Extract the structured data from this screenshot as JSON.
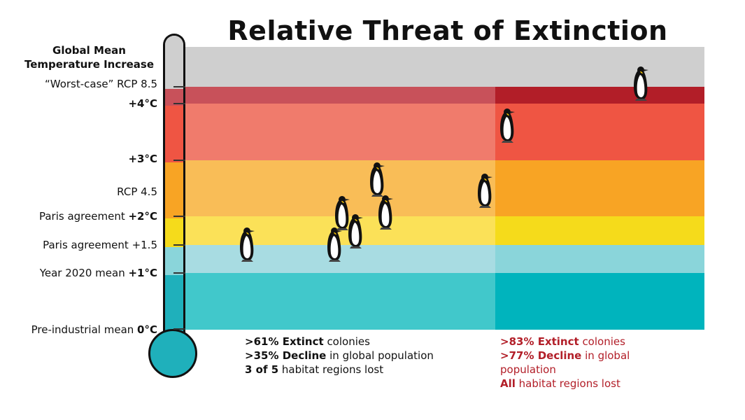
{
  "title": "Relative Threat of Extinction",
  "axis": {
    "heading_line1": "Global Mean",
    "heading_line2": "Temperature Increase",
    "labels": [
      {
        "pre": "“Worst-case” RCP 8.5",
        "bold": ""
      },
      {
        "pre": "",
        "bold": "+4°C"
      },
      {
        "pre": "",
        "bold": "+3°C"
      },
      {
        "pre": "RCP 4.5",
        "bold": ""
      },
      {
        "pre": "Paris agreement ",
        "bold": "+2°C"
      },
      {
        "pre": "Paris agreement +1.5",
        "bold": ""
      },
      {
        "pre": "Year 2020 mean ",
        "bold": "+1°C"
      },
      {
        "pre": "Pre-industrial mean ",
        "bold": "0°C"
      }
    ]
  },
  "colors": {
    "gray": "#cfcfcf",
    "rcp85_light": "#c8515a",
    "rcp85_dark": "#b21e28",
    "red_light": "#f07b6c",
    "red_dark": "#ef5543",
    "orange_light": "#f9bd57",
    "orange_dark": "#f8a424",
    "yellow_light": "#fbe158",
    "yellow_dark": "#f5db1b",
    "lightblue_light": "#a8dce2",
    "lightblue_dark": "#8ad5da",
    "teal_light": "#41c8cb",
    "teal_dark": "#00b4bd",
    "stats_red": "#b21e28"
  },
  "stats_left": {
    "line1_bold": ">61% Extinct",
    "line1_rest": " colonies",
    "line2_bold": ">35% Decline",
    "line2_rest": " in global population",
    "line3_bold": "3 of 5",
    "line3_rest": " habitat regions lost"
  },
  "stats_right": {
    "line1_bold": ">83% Extinct",
    "line1_rest": " colonies",
    "line2_bold": ">77% Decline",
    "line2_rest": " in global population",
    "line3_bold": "All",
    "line3_rest": " habitat regions lost"
  },
  "icons": {
    "penguin": "emperor-penguin-icon",
    "thermometer": "thermometer-icon"
  }
}
